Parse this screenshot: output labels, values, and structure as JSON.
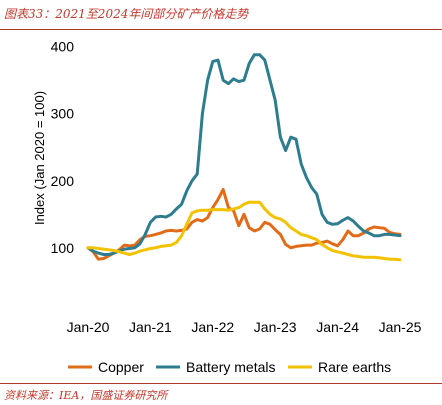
{
  "header": {
    "title": "图表33：2021至2024年间部分矿产价格走势"
  },
  "footer": {
    "source": "资料来源：IEA，国盛证券研究所"
  },
  "chart_data": {
    "type": "line",
    "title": "",
    "xlabel": "",
    "ylabel": "Index (Jan 2020 = 100)",
    "ylim": [
      40,
      410
    ],
    "yticks": [
      100,
      200,
      300,
      400
    ],
    "xticks": [
      {
        "label": "Jan-20",
        "x": 0
      },
      {
        "label": "Jan-21",
        "x": 12
      },
      {
        "label": "Jan-22",
        "x": 24
      },
      {
        "label": "Jan-23",
        "x": 36
      },
      {
        "label": "Jan-24",
        "x": 48
      },
      {
        "label": "Jan-25",
        "x": 60
      }
    ],
    "xlim": [
      0,
      60
    ],
    "grid": false,
    "legend": "bottom",
    "series": [
      {
        "name": "Copper",
        "color": "#e06c1a",
        "points": [
          [
            0,
            100
          ],
          [
            1,
            94
          ],
          [
            2,
            83
          ],
          [
            3,
            84
          ],
          [
            4,
            88
          ],
          [
            5,
            92
          ],
          [
            6,
            97
          ],
          [
            7,
            104
          ],
          [
            8,
            103
          ],
          [
            9,
            104
          ],
          [
            10,
            112
          ],
          [
            11,
            117
          ],
          [
            12,
            118
          ],
          [
            13,
            120
          ],
          [
            14,
            122
          ],
          [
            15,
            125
          ],
          [
            16,
            126
          ],
          [
            17,
            125
          ],
          [
            18,
            126
          ],
          [
            19,
            128
          ],
          [
            20,
            138
          ],
          [
            21,
            142
          ],
          [
            22,
            140
          ],
          [
            23,
            145
          ],
          [
            24,
            160
          ],
          [
            25,
            172
          ],
          [
            26,
            187
          ],
          [
            27,
            160
          ],
          [
            28,
            155
          ],
          [
            29,
            133
          ],
          [
            30,
            150
          ],
          [
            31,
            130
          ],
          [
            32,
            125
          ],
          [
            33,
            128
          ],
          [
            34,
            138
          ],
          [
            35,
            135
          ],
          [
            36,
            127
          ],
          [
            37,
            120
          ],
          [
            38,
            105
          ],
          [
            39,
            100
          ],
          [
            40,
            102
          ],
          [
            41,
            103
          ],
          [
            42,
            104
          ],
          [
            43,
            104
          ],
          [
            44,
            107
          ],
          [
            45,
            108
          ],
          [
            46,
            110
          ],
          [
            47,
            106
          ],
          [
            48,
            103
          ],
          [
            49,
            112
          ],
          [
            50,
            125
          ],
          [
            51,
            118
          ],
          [
            52,
            118
          ],
          [
            53,
            122
          ],
          [
            54,
            128
          ],
          [
            55,
            131
          ],
          [
            56,
            130
          ],
          [
            57,
            129
          ],
          [
            58,
            123
          ],
          [
            59,
            121
          ],
          [
            60,
            120
          ]
        ]
      },
      {
        "name": "Battery metals",
        "color": "#2e7d8f",
        "points": [
          [
            0,
            100
          ],
          [
            1,
            95
          ],
          [
            2,
            92
          ],
          [
            3,
            90
          ],
          [
            4,
            90
          ],
          [
            5,
            92
          ],
          [
            6,
            95
          ],
          [
            7,
            98
          ],
          [
            8,
            99
          ],
          [
            9,
            100
          ],
          [
            10,
            106
          ],
          [
            11,
            120
          ],
          [
            12,
            138
          ],
          [
            13,
            146
          ],
          [
            14,
            147
          ],
          [
            15,
            146
          ],
          [
            16,
            150
          ],
          [
            17,
            158
          ],
          [
            18,
            165
          ],
          [
            19,
            185
          ],
          [
            20,
            200
          ],
          [
            21,
            210
          ],
          [
            22,
            300
          ],
          [
            23,
            350
          ],
          [
            24,
            378
          ],
          [
            25,
            380
          ],
          [
            26,
            350
          ],
          [
            27,
            345
          ],
          [
            28,
            352
          ],
          [
            29,
            348
          ],
          [
            30,
            350
          ],
          [
            31,
            375
          ],
          [
            32,
            388
          ],
          [
            33,
            388
          ],
          [
            34,
            380
          ],
          [
            35,
            350
          ],
          [
            36,
            320
          ],
          [
            37,
            265
          ],
          [
            38,
            245
          ],
          [
            39,
            265
          ],
          [
            40,
            262
          ],
          [
            41,
            225
          ],
          [
            42,
            205
          ],
          [
            43,
            190
          ],
          [
            44,
            180
          ],
          [
            45,
            150
          ],
          [
            46,
            138
          ],
          [
            47,
            135
          ],
          [
            48,
            136
          ],
          [
            49,
            141
          ],
          [
            50,
            145
          ],
          [
            51,
            140
          ],
          [
            52,
            132
          ],
          [
            53,
            125
          ],
          [
            54,
            122
          ],
          [
            55,
            118
          ],
          [
            56,
            118
          ],
          [
            57,
            120
          ],
          [
            58,
            120
          ],
          [
            59,
            119
          ],
          [
            60,
            118
          ]
        ]
      },
      {
        "name": "Rare earths",
        "color": "#f2c200",
        "points": [
          [
            0,
            100
          ],
          [
            1,
            100
          ],
          [
            2,
            99
          ],
          [
            3,
            98
          ],
          [
            4,
            97
          ],
          [
            5,
            96
          ],
          [
            6,
            94
          ],
          [
            7,
            92
          ],
          [
            8,
            90
          ],
          [
            9,
            92
          ],
          [
            10,
            95
          ],
          [
            11,
            97
          ],
          [
            12,
            99
          ],
          [
            13,
            100
          ],
          [
            14,
            102
          ],
          [
            15,
            103
          ],
          [
            16,
            104
          ],
          [
            17,
            108
          ],
          [
            18,
            118
          ],
          [
            19,
            135
          ],
          [
            20,
            152
          ],
          [
            21,
            155
          ],
          [
            22,
            156
          ],
          [
            23,
            156
          ],
          [
            24,
            157
          ],
          [
            25,
            157
          ],
          [
            26,
            157
          ],
          [
            27,
            156
          ],
          [
            28,
            158
          ],
          [
            29,
            160
          ],
          [
            30,
            165
          ],
          [
            31,
            168
          ],
          [
            32,
            168
          ],
          [
            33,
            168
          ],
          [
            34,
            158
          ],
          [
            35,
            150
          ],
          [
            36,
            145
          ],
          [
            37,
            143
          ],
          [
            38,
            138
          ],
          [
            39,
            130
          ],
          [
            40,
            125
          ],
          [
            41,
            120
          ],
          [
            42,
            118
          ],
          [
            43,
            115
          ],
          [
            44,
            112
          ],
          [
            45,
            105
          ],
          [
            46,
            100
          ],
          [
            47,
            96
          ],
          [
            48,
            94
          ],
          [
            49,
            92
          ],
          [
            50,
            90
          ],
          [
            51,
            88
          ],
          [
            52,
            87
          ],
          [
            53,
            86
          ],
          [
            54,
            86
          ],
          [
            55,
            86
          ],
          [
            56,
            85
          ],
          [
            57,
            84
          ],
          [
            58,
            83
          ],
          [
            59,
            83
          ],
          [
            60,
            82
          ]
        ]
      }
    ]
  }
}
